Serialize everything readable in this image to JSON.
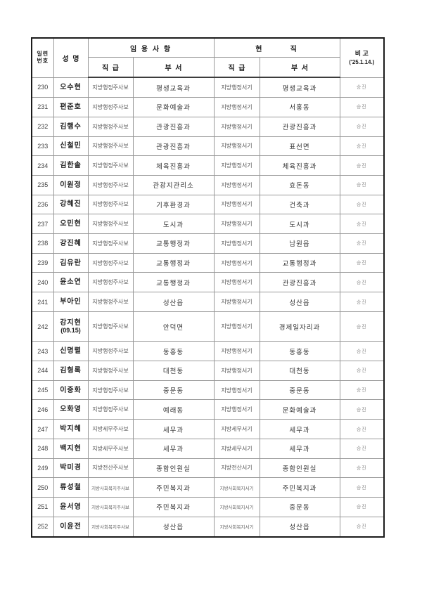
{
  "table": {
    "header": {
      "serial_line1": "일련",
      "serial_line2": "번호",
      "name": "성  명",
      "appointment": "임 용 사 항",
      "current": "현        직",
      "rank": "직  급",
      "dept": "부  서",
      "note_line1": "비 고",
      "note_line2": "('25.1.14.)"
    },
    "rows": [
      {
        "no": "230",
        "name": "오수현",
        "app_rank": "지방행정주사보",
        "app_dept": "평생교육과",
        "cur_rank": "지방행정서기",
        "cur_dept": "평생교육과",
        "note": "승진"
      },
      {
        "no": "231",
        "name": "편준호",
        "app_rank": "지방행정주사보",
        "app_dept": "문화예술과",
        "cur_rank": "지방행정서기",
        "cur_dept": "서홍동",
        "note": "승진"
      },
      {
        "no": "232",
        "name": "김행수",
        "app_rank": "지방행정주사보",
        "app_dept": "관광진흥과",
        "cur_rank": "지방행정서기",
        "cur_dept": "관광진흥과",
        "note": "승진"
      },
      {
        "no": "233",
        "name": "신철민",
        "app_rank": "지방행정주사보",
        "app_dept": "관광진흥과",
        "cur_rank": "지방행정서기",
        "cur_dept": "표선면",
        "note": "승진"
      },
      {
        "no": "234",
        "name": "김한솔",
        "app_rank": "지방행정주사보",
        "app_dept": "체육진흥과",
        "cur_rank": "지방행정서기",
        "cur_dept": "체육진흥과",
        "note": "승진"
      },
      {
        "no": "235",
        "name": "이원정",
        "app_rank": "지방행정주사보",
        "app_dept": "관광지관리소",
        "cur_rank": "지방행정서기",
        "cur_dept": "효돈동",
        "note": "승진"
      },
      {
        "no": "236",
        "name": "강혜진",
        "app_rank": "지방행정주사보",
        "app_dept": "기후환경과",
        "cur_rank": "지방행정서기",
        "cur_dept": "건축과",
        "note": "승진"
      },
      {
        "no": "237",
        "name": "오민현",
        "app_rank": "지방행정주사보",
        "app_dept": "도시과",
        "cur_rank": "지방행정서기",
        "cur_dept": "도시과",
        "note": "승진"
      },
      {
        "no": "238",
        "name": "강진혜",
        "app_rank": "지방행정주사보",
        "app_dept": "교통행정과",
        "cur_rank": "지방행정서기",
        "cur_dept": "남원읍",
        "note": "승진"
      },
      {
        "no": "239",
        "name": "김유란",
        "app_rank": "지방행정주사보",
        "app_dept": "교통행정과",
        "cur_rank": "지방행정서기",
        "cur_dept": "교통행정과",
        "note": "승진"
      },
      {
        "no": "240",
        "name": "윤소연",
        "app_rank": "지방행정주사보",
        "app_dept": "교통행정과",
        "cur_rank": "지방행정서기",
        "cur_dept": "관광진흥과",
        "note": "승진"
      },
      {
        "no": "241",
        "name": "부아인",
        "app_rank": "지방행정주사보",
        "app_dept": "성산읍",
        "cur_rank": "지방행정서기",
        "cur_dept": "성산읍",
        "note": "승진"
      },
      {
        "no": "242",
        "name": "강지현",
        "name_sub": "(09.15)",
        "app_rank": "지방행정주사보",
        "app_dept": "안덕면",
        "cur_rank": "지방행정서기",
        "cur_dept": "경제일자리과",
        "note": "승진"
      },
      {
        "no": "243",
        "name": "신명렬",
        "app_rank": "지방행정주사보",
        "app_dept": "동홍동",
        "cur_rank": "지방행정서기",
        "cur_dept": "동홍동",
        "note": "승진"
      },
      {
        "no": "244",
        "name": "김형록",
        "app_rank": "지방행정주사보",
        "app_dept": "대천동",
        "cur_rank": "지방행정서기",
        "cur_dept": "대천동",
        "note": "승진"
      },
      {
        "no": "245",
        "name": "이중화",
        "app_rank": "지방행정주사보",
        "app_dept": "중문동",
        "cur_rank": "지방행정서기",
        "cur_dept": "중문동",
        "note": "승진"
      },
      {
        "no": "246",
        "name": "오화영",
        "app_rank": "지방행정주사보",
        "app_dept": "예래동",
        "cur_rank": "지방행정서기",
        "cur_dept": "문화예술과",
        "note": "승진"
      },
      {
        "no": "247",
        "name": "박지혜",
        "app_rank": "지방세무주사보",
        "app_dept": "세무과",
        "cur_rank": "지방세무서기",
        "cur_dept": "세무과",
        "note": "승진"
      },
      {
        "no": "248",
        "name": "백지현",
        "app_rank": "지방세무주사보",
        "app_dept": "세무과",
        "cur_rank": "지방세무서기",
        "cur_dept": "세무과",
        "note": "승진"
      },
      {
        "no": "249",
        "name": "박미경",
        "app_rank": "지방전산주사보",
        "app_dept": "종합인원실",
        "cur_rank": "지방전산서기",
        "cur_dept": "종합인원실",
        "note": "승진"
      },
      {
        "no": "250",
        "name": "류성철",
        "app_rank": "지방사회복지주사보",
        "app_dept": "주민복지과",
        "cur_rank": "지방사회복지서기",
        "cur_dept": "주민복지과",
        "note": "승진"
      },
      {
        "no": "251",
        "name": "윤서영",
        "app_rank": "지방사회복지주사보",
        "app_dept": "주민복지과",
        "cur_rank": "지방사회복지서기",
        "cur_dept": "중문동",
        "note": "승진"
      },
      {
        "no": "252",
        "name": "이윤전",
        "app_rank": "지방사회복지주사보",
        "app_dept": "성산읍",
        "cur_rank": "지방사회복지서기",
        "cur_dept": "성산읍",
        "note": "승진"
      }
    ]
  }
}
